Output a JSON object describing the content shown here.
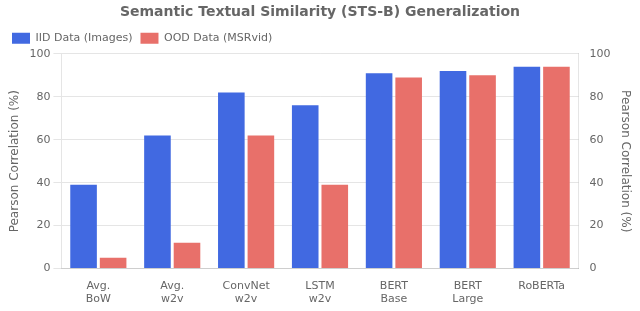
{
  "chart_data": {
    "type": "bar",
    "title": "Semantic Textual Similarity (STS-B) Generalization",
    "ylabel": "Pearson Correlation (%)",
    "y2label": "Pearson Correlation (%)",
    "categories": [
      "Avg.\nBoW",
      "Avg.\nw2v",
      "ConvNet\nw2v",
      "LSTM\nw2v",
      "BERT\nBase",
      "BERT\nLarge",
      "RoBERTa"
    ],
    "series": [
      {
        "name": "IID Data (Images)",
        "color": "#4169e1",
        "values": [
          39,
          62,
          82,
          76,
          91,
          92,
          94
        ]
      },
      {
        "name": "OOD Data (MSRvid)",
        "color": "#e8706a",
        "values": [
          5,
          12,
          62,
          39,
          89,
          90,
          94
        ]
      }
    ],
    "ylim": [
      0,
      100
    ],
    "yticks": [
      0,
      20,
      40,
      60,
      80,
      100
    ],
    "y2lim": [
      0,
      100
    ],
    "y2ticks": [
      0,
      20,
      40,
      60,
      80,
      100
    ],
    "grid": true,
    "legend": "upper left"
  }
}
